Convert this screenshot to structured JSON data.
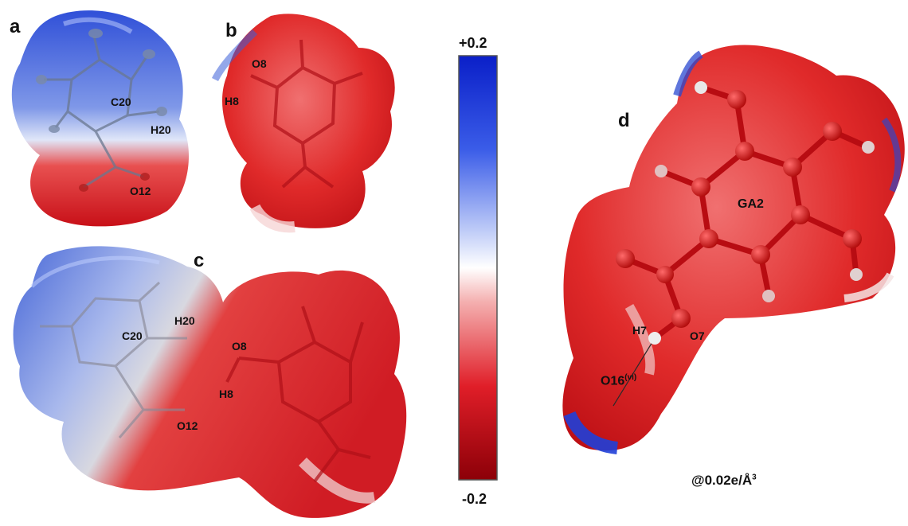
{
  "panels": {
    "a": "a",
    "b": "b",
    "c": "c",
    "d": "d"
  },
  "atoms": {
    "a_c20": "C20",
    "a_h20": "H20",
    "a_o12": "O12",
    "b_o8": "O8",
    "b_h8": "H8",
    "c_c20": "C20",
    "c_h20": "H20",
    "c_o8": "O8",
    "c_h8": "H8",
    "c_o12": "O12",
    "d_ga2": "GA2",
    "d_h7": "H7",
    "d_o7": "O7",
    "d_o16": "O16",
    "d_o16_sup": "(vi)"
  },
  "color_scale": {
    "max_label": "+0.2",
    "min_label": "-0.2",
    "max_value": 0.2,
    "min_value": -0.2,
    "colors": {
      "positive": "#1030d8",
      "neutral": "#ffffff",
      "negative": "#c00010"
    }
  },
  "isovalue": {
    "prefix": "@0.02e/Å",
    "exp": "3"
  }
}
